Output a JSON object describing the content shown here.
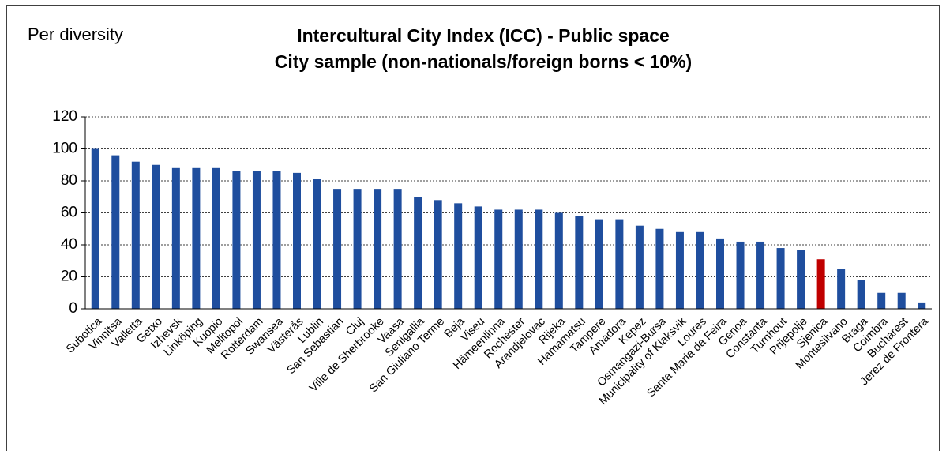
{
  "chart_data": {
    "type": "bar",
    "annotation": "Per diversity",
    "title": [
      "Intercultural City Index (ICC) - Public space",
      "City sample (non-nationals/foreign borns < 10%)"
    ],
    "categories": [
      "Subotica",
      "Vinnitsa",
      "Valletta",
      "Getxo",
      "Izhevsk",
      "Linköping",
      "Kuopio",
      "Melitopol",
      "Rotterdam",
      "Swansea",
      "Västerås",
      "Lublin",
      "San Sebastián",
      "Cluj",
      "Ville de Sherbrooke",
      "Vaasa",
      "Senigallia",
      "San Giuliano Terme",
      "Beja",
      "Viseu",
      "Hämeenlinna",
      "Rochester",
      "Arandjelovac",
      "Rijeka",
      "Hamamatsu",
      "Tampere",
      "Amadora",
      "Kepez",
      "Osmangazi-Bursa",
      "Municipality of Klaksvik",
      "Loures",
      "Santa Maria da Feira",
      "Genoa",
      "Constanta",
      "Turnhout",
      "Prijepolje",
      "Sjenica",
      "Montesilvano",
      "Braga",
      "Coimbra",
      "Bucharest",
      "Jerez de Frontera"
    ],
    "values": [
      100,
      96,
      92,
      90,
      88,
      88,
      88,
      86,
      86,
      86,
      85,
      81,
      75,
      75,
      75,
      75,
      70,
      68,
      66,
      64,
      62,
      62,
      62,
      60,
      58,
      56,
      56,
      52,
      50,
      48,
      48,
      44,
      42,
      42,
      38,
      37,
      31,
      25,
      18,
      10,
      10,
      4
    ],
    "colors": [
      "#1f4e9e",
      "#1f4e9e",
      "#1f4e9e",
      "#1f4e9e",
      "#1f4e9e",
      "#1f4e9e",
      "#1f4e9e",
      "#1f4e9e",
      "#1f4e9e",
      "#1f4e9e",
      "#1f4e9e",
      "#1f4e9e",
      "#1f4e9e",
      "#1f4e9e",
      "#1f4e9e",
      "#1f4e9e",
      "#1f4e9e",
      "#1f4e9e",
      "#1f4e9e",
      "#1f4e9e",
      "#1f4e9e",
      "#1f4e9e",
      "#1f4e9e",
      "#1f4e9e",
      "#1f4e9e",
      "#1f4e9e",
      "#1f4e9e",
      "#1f4e9e",
      "#1f4e9e",
      "#1f4e9e",
      "#1f4e9e",
      "#1f4e9e",
      "#1f4e9e",
      "#1f4e9e",
      "#1f4e9e",
      "#1f4e9e",
      "#c00000",
      "#1f4e9e",
      "#1f4e9e",
      "#1f4e9e",
      "#1f4e9e",
      "#1f4e9e"
    ],
    "ylim": [
      0,
      120
    ],
    "yticks": [
      0,
      20,
      40,
      60,
      80,
      100,
      120
    ],
    "grid": true
  }
}
